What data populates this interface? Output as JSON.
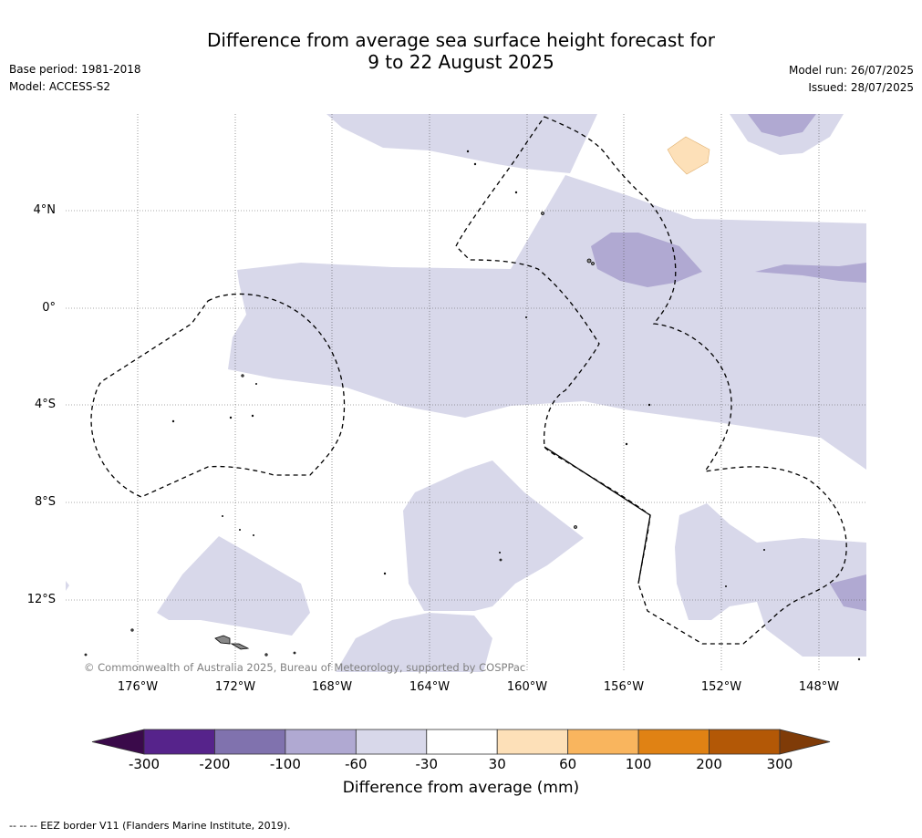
{
  "title": {
    "line1": "Difference from average sea surface height forecast for",
    "line2": "9 to 22 August 2025"
  },
  "meta_left": {
    "base_period": "Base period: 1981-2018",
    "model": "Model: ACCESS-S2"
  },
  "meta_right": {
    "model_run": "Model run: 26/07/2025",
    "issued": "Issued: 28/07/2025"
  },
  "map": {
    "copyright": "© Commonwealth of Australia 2025, Bureau of Meteorology, supported by COSPPac",
    "lat_labels": [
      "4°N",
      "0°",
      "4°S",
      "8°S",
      "12°S"
    ],
    "lon_labels": [
      "176°W",
      "172°W",
      "168°W",
      "164°W",
      "160°W",
      "156°W",
      "152°W",
      "148°W"
    ],
    "colors": {
      "band_neg60_neg30": "#d8d8ea",
      "band_neg100_neg60": "#b0a9d2",
      "band_30_60": "#fde0b8",
      "land": "#888888",
      "gridline": "#555555",
      "eez": "#000000"
    }
  },
  "colorbar": {
    "ticks": [
      "-300",
      "-200",
      "-100",
      "-60",
      "-30",
      "30",
      "60",
      "100",
      "200",
      "300"
    ],
    "colors": [
      "#3a0a4a",
      "#56238b",
      "#8072ae",
      "#b0a9d2",
      "#d8d8ea",
      "#ffffff",
      "#fde0b8",
      "#f9b55e",
      "#e08214",
      "#b35806",
      "#7f3b08"
    ],
    "label": "Difference from average (mm)"
  },
  "footer": "--  --  -- EEZ border V11 (Flanders Marine Institute, 2019)."
}
